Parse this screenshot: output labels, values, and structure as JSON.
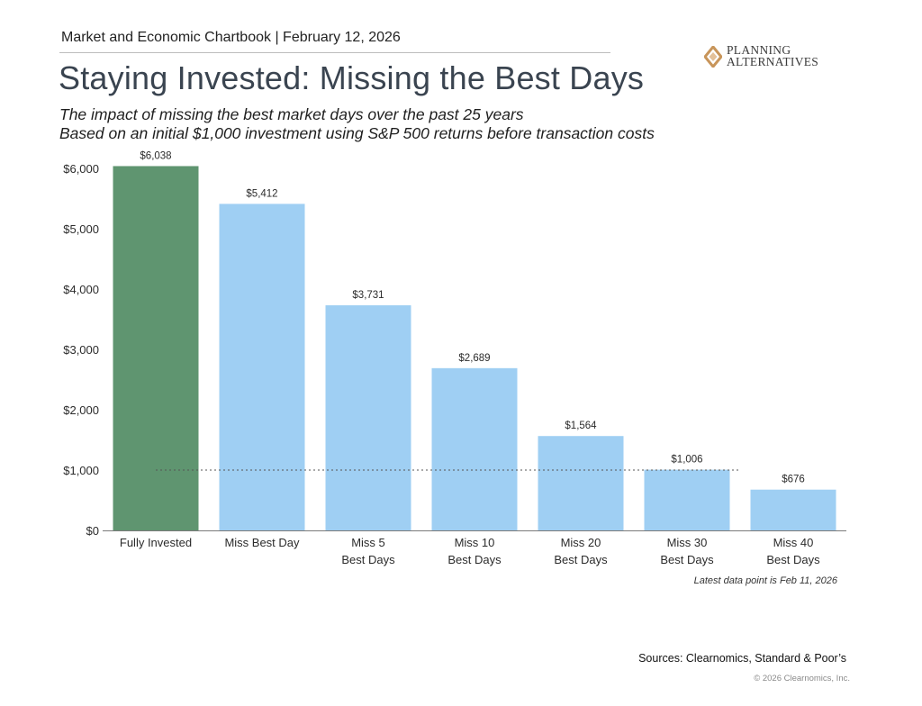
{
  "header": {
    "chartbook_line": "Market and Economic Chartbook | February 12, 2026",
    "title": "Staying Invested: Missing the Best Days",
    "subtitle_line1": "The impact of missing the best market days over the past 25 years",
    "subtitle_line2": "Based on an initial $1,000 investment using S&P 500 returns before transaction costs"
  },
  "logo": {
    "line1": "PLANNING",
    "line2": "ALTERNATIVES",
    "colors": {
      "primary": "#c8955a",
      "secondary": "#e3c19a"
    }
  },
  "chart_data": {
    "type": "bar",
    "categories": [
      [
        "Fully Invested"
      ],
      [
        "Miss Best Day"
      ],
      [
        "Miss 5",
        "Best Days"
      ],
      [
        "Miss 10",
        "Best Days"
      ],
      [
        "Miss 20",
        "Best Days"
      ],
      [
        "Miss 30",
        "Best Days"
      ],
      [
        "Miss 40",
        "Best Days"
      ]
    ],
    "values": [
      6038,
      5412,
      3731,
      2689,
      1564,
      1006,
      676
    ],
    "data_labels": [
      "$6,038",
      "$5,412",
      "$3,731",
      "$2,689",
      "$1,564",
      "$1,006",
      "$676"
    ],
    "ylim": [
      0,
      6000
    ],
    "yticks": [
      0,
      1000,
      2000,
      3000,
      4000,
      5000,
      6000
    ],
    "ytick_labels": [
      "$0",
      "$1,000",
      "$2,000",
      "$3,000",
      "$4,000",
      "$5,000",
      "$6,000"
    ],
    "reference_line": {
      "value": 1000,
      "style": "dotted"
    },
    "colors": {
      "first_bar": "#5f9570",
      "other_bars": "#9fcff3",
      "axis": "#7a7a7a"
    },
    "grid": false
  },
  "footer": {
    "note": "Latest data point is Feb 11, 2026",
    "sources": "Sources: Clearnomics, Standard & Poor’s",
    "copyright": "© 2026 Clearnomics, Inc."
  }
}
